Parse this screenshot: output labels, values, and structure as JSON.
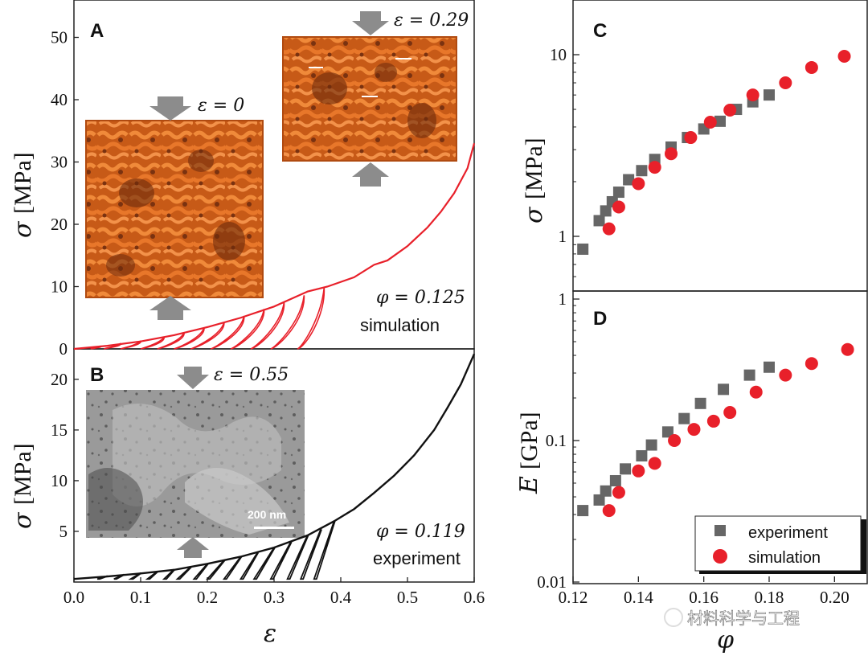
{
  "colors": {
    "simulation": "#e8202a",
    "experiment": "#666666",
    "inset_orange": "#dd6a1e",
    "inset_orange_dark": "#8a3a10",
    "arrow_gray": "#8c8c8c",
    "sem_gray": "#8f8f8f"
  },
  "panelA": {
    "label": "A",
    "phi_label": "φ = 0.125",
    "type_label": "simulation",
    "inset1_strain": "ε = 0",
    "inset2_strain": "ε = 0.29"
  },
  "panelB": {
    "label": "B",
    "phi_label": "φ = 0.119",
    "type_label": "experiment",
    "inset_strain": "ε = 0.55",
    "scale_bar": "200 nm"
  },
  "panelC": {
    "label": "C"
  },
  "panelD": {
    "label": "D"
  },
  "legend": {
    "experiment": "experiment",
    "simulation": "simulation"
  },
  "watermark": "材料科学与工程",
  "chart_data": [
    {
      "id": "A",
      "type": "line",
      "title": "",
      "xlabel": "ε",
      "ylabel": "σ [MPa]",
      "ylabel_symbol": "σ",
      "ylabel_unit": "[MPa]",
      "xlim": [
        0,
        0.6
      ],
      "ylim": [
        0,
        56
      ],
      "yticks": [
        0,
        10,
        20,
        30,
        40,
        50
      ],
      "yticklabels": [
        "0",
        "10",
        "20",
        "30",
        "40",
        "50"
      ],
      "series": [
        {
          "name": "simulation loading curve",
          "x": [
            0,
            0.05,
            0.1,
            0.15,
            0.2,
            0.25,
            0.3,
            0.35,
            0.38,
            0.42,
            0.45,
            0.47,
            0.5,
            0.53,
            0.55,
            0.57,
            0.59,
            0.6
          ],
          "y": [
            0,
            0.5,
            1.2,
            2.2,
            3.5,
            5.0,
            6.8,
            9.2,
            10.0,
            11.5,
            13.5,
            14.2,
            16.5,
            19.5,
            22.0,
            25.0,
            29.0,
            33.0
          ]
        }
      ],
      "unload_loops": [
        {
          "peak_strain": 0.04,
          "peak_stress": 0.45,
          "residual_strain": 0.025
        },
        {
          "peak_strain": 0.07,
          "peak_stress": 0.9,
          "residual_strain": 0.045
        },
        {
          "peak_strain": 0.1,
          "peak_stress": 1.3,
          "residual_strain": 0.07
        },
        {
          "peak_strain": 0.135,
          "peak_stress": 1.9,
          "residual_strain": 0.1
        },
        {
          "peak_strain": 0.165,
          "peak_stress": 2.6,
          "residual_strain": 0.125
        },
        {
          "peak_strain": 0.195,
          "peak_stress": 3.4,
          "residual_strain": 0.15
        },
        {
          "peak_strain": 0.225,
          "peak_stress": 4.3,
          "residual_strain": 0.175
        },
        {
          "peak_strain": 0.255,
          "peak_stress": 5.3,
          "residual_strain": 0.205
        },
        {
          "peak_strain": 0.285,
          "peak_stress": 6.4,
          "residual_strain": 0.235
        },
        {
          "peak_strain": 0.315,
          "peak_stress": 7.5,
          "residual_strain": 0.265
        },
        {
          "peak_strain": 0.345,
          "peak_stress": 8.6,
          "residual_strain": 0.295
        },
        {
          "peak_strain": 0.375,
          "peak_stress": 9.8,
          "residual_strain": 0.335
        }
      ]
    },
    {
      "id": "B",
      "type": "line",
      "title": "",
      "xlabel": "ε",
      "ylabel": "σ [MPa]",
      "ylabel_symbol": "σ",
      "ylabel_unit": "[MPa]",
      "xlim": [
        0,
        0.6
      ],
      "ylim": [
        0,
        23
      ],
      "xticks": [
        0.0,
        0.1,
        0.2,
        0.3,
        0.4,
        0.5,
        0.6
      ],
      "xticklabels": [
        "0.0",
        "0.1",
        "0.2",
        "0.3",
        "0.4",
        "0.5",
        "0.6"
      ],
      "yticks": [
        5,
        10,
        15,
        20
      ],
      "yticklabels": [
        "5",
        "10",
        "15",
        "20"
      ],
      "series": [
        {
          "name": "experiment loading curve",
          "x": [
            0,
            0.05,
            0.1,
            0.15,
            0.2,
            0.25,
            0.3,
            0.35,
            0.39,
            0.42,
            0.45,
            0.48,
            0.51,
            0.54,
            0.56,
            0.58,
            0.6
          ],
          "y": [
            0.3,
            0.55,
            0.85,
            1.2,
            1.8,
            2.5,
            3.4,
            4.6,
            6.0,
            7.2,
            8.8,
            10.5,
            12.5,
            15.0,
            17.2,
            19.5,
            22.5
          ]
        }
      ],
      "unload_loops": [
        {
          "peak_strain": 0.05,
          "peak_stress": 0.6,
          "residual_strain": 0.035
        },
        {
          "peak_strain": 0.075,
          "peak_stress": 0.75,
          "residual_strain": 0.06
        },
        {
          "peak_strain": 0.1,
          "peak_stress": 0.9,
          "residual_strain": 0.085
        },
        {
          "peak_strain": 0.125,
          "peak_stress": 1.05,
          "residual_strain": 0.11
        },
        {
          "peak_strain": 0.15,
          "peak_stress": 1.25,
          "residual_strain": 0.135
        },
        {
          "peak_strain": 0.175,
          "peak_stress": 1.5,
          "residual_strain": 0.155
        },
        {
          "peak_strain": 0.2,
          "peak_stress": 1.8,
          "residual_strain": 0.18
        },
        {
          "peak_strain": 0.225,
          "peak_stress": 2.15,
          "residual_strain": 0.2
        },
        {
          "peak_strain": 0.25,
          "peak_stress": 2.5,
          "residual_strain": 0.225
        },
        {
          "peak_strain": 0.275,
          "peak_stress": 2.9,
          "residual_strain": 0.25
        },
        {
          "peak_strain": 0.3,
          "peak_stress": 3.4,
          "residual_strain": 0.27
        },
        {
          "peak_strain": 0.325,
          "peak_stress": 3.95,
          "residual_strain": 0.295
        },
        {
          "peak_strain": 0.35,
          "peak_stress": 4.6,
          "residual_strain": 0.32
        },
        {
          "peak_strain": 0.37,
          "peak_stress": 5.2,
          "residual_strain": 0.34
        },
        {
          "peak_strain": 0.39,
          "peak_stress": 6.0,
          "residual_strain": 0.36
        }
      ]
    },
    {
      "id": "C",
      "type": "scatter",
      "title": "",
      "xlabel": "φ",
      "ylabel": "σ [MPa]",
      "ylabel_symbol": "σ",
      "ylabel_unit": "[MPa]",
      "xlim": [
        0.12,
        0.21
      ],
      "ylim": [
        0.5,
        20
      ],
      "yscale": "log",
      "yticks": [
        1,
        10
      ],
      "yticklabels": [
        "1",
        "10"
      ],
      "series": [
        {
          "name": "experiment",
          "marker": "square",
          "x": [
            0.123,
            0.128,
            0.13,
            0.132,
            0.134,
            0.137,
            0.141,
            0.145,
            0.15,
            0.155,
            0.16,
            0.165,
            0.17,
            0.175,
            0.18
          ],
          "y": [
            0.85,
            1.22,
            1.38,
            1.55,
            1.75,
            2.05,
            2.3,
            2.65,
            3.1,
            3.5,
            3.9,
            4.3,
            5.0,
            5.5,
            6.0
          ]
        },
        {
          "name": "simulation",
          "marker": "circle",
          "x": [
            0.131,
            0.134,
            0.14,
            0.145,
            0.15,
            0.156,
            0.162,
            0.168,
            0.175,
            0.185,
            0.193,
            0.203
          ],
          "y": [
            1.1,
            1.45,
            1.95,
            2.4,
            2.85,
            3.5,
            4.25,
            4.95,
            6.0,
            7.0,
            8.5,
            9.8
          ]
        }
      ]
    },
    {
      "id": "D",
      "type": "scatter",
      "title": "",
      "xlabel": "φ",
      "ylabel": "E [GPa]",
      "ylabel_symbol": "E",
      "ylabel_unit": "[GPa]",
      "xlim": [
        0.12,
        0.21
      ],
      "xticks": [
        0.12,
        0.14,
        0.16,
        0.18,
        0.2
      ],
      "xticklabels": [
        "0.12",
        "0.14",
        "0.16",
        "0.18",
        "0.20"
      ],
      "ylim": [
        0.01,
        1
      ],
      "yscale": "log",
      "yticks": [
        0.01,
        0.1,
        1
      ],
      "yticklabels": [
        "0.01",
        "0.1",
        "1"
      ],
      "legend_position": "bottom-right",
      "series": [
        {
          "name": "experiment",
          "marker": "square",
          "x": [
            0.123,
            0.128,
            0.13,
            0.133,
            0.136,
            0.141,
            0.144,
            0.149,
            0.154,
            0.159,
            0.166,
            0.174,
            0.18
          ],
          "y": [
            0.032,
            0.038,
            0.044,
            0.052,
            0.063,
            0.078,
            0.093,
            0.115,
            0.143,
            0.183,
            0.23,
            0.29,
            0.33
          ]
        },
        {
          "name": "simulation",
          "marker": "circle",
          "x": [
            0.131,
            0.134,
            0.14,
            0.145,
            0.151,
            0.157,
            0.163,
            0.168,
            0.176,
            0.185,
            0.193,
            0.204
          ],
          "y": [
            0.032,
            0.043,
            0.061,
            0.069,
            0.1,
            0.12,
            0.137,
            0.158,
            0.22,
            0.29,
            0.35,
            0.44
          ]
        }
      ]
    }
  ]
}
